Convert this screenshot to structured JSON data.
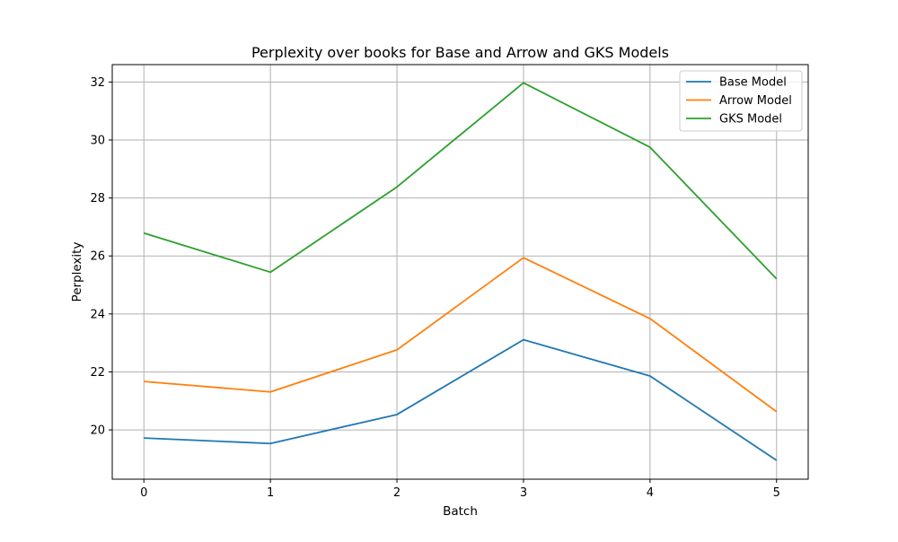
{
  "chart_data": {
    "type": "line",
    "title": "Perplexity over books for Base and Arrow and GKS Models",
    "xlabel": "Batch",
    "ylabel": "Perplexity",
    "x": [
      0,
      1,
      2,
      3,
      4,
      5
    ],
    "xticks": [
      "0",
      "1",
      "2",
      "3",
      "4",
      "5"
    ],
    "yticks": [
      "20",
      "22",
      "24",
      "26",
      "28",
      "30",
      "32"
    ],
    "xlim": [
      -0.25,
      5.25
    ],
    "ylim": [
      18.3,
      32.6
    ],
    "grid": true,
    "legend_position": "upper right",
    "series": [
      {
        "name": "Base Model",
        "color": "#1f77b4",
        "values": [
          19.72,
          19.53,
          20.53,
          23.11,
          21.86,
          18.95
        ]
      },
      {
        "name": "Arrow Model",
        "color": "#ff7f0e",
        "values": [
          21.67,
          21.31,
          22.76,
          25.94,
          23.84,
          20.63
        ]
      },
      {
        "name": "GKS Model",
        "color": "#2ca02c",
        "values": [
          26.79,
          25.44,
          28.38,
          31.97,
          29.75,
          25.21
        ]
      }
    ]
  }
}
